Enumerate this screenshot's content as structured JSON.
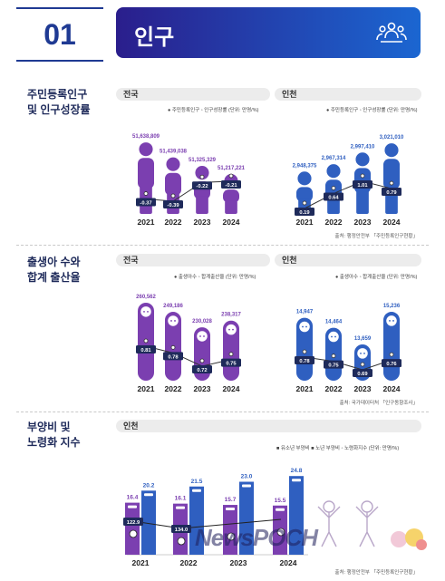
{
  "header": {
    "number": "01",
    "title": "인구"
  },
  "sections": [
    {
      "label_line1": "주민등록인구",
      "label_line2": "및 인구성장률"
    },
    {
      "label_line1": "출생아 수와",
      "label_line2": "합계 출산율"
    },
    {
      "label_line1": "부양비 및",
      "label_line2": "노령화 지수"
    }
  ],
  "panels": {
    "pop_nat": {
      "title": "전국",
      "legend": "● 주민등록인구 ◦ 인구성장률 (단위: 만명/%)"
    },
    "pop_inc": {
      "title": "인천",
      "legend": "● 주민등록인구 ◦ 인구성장률 (단위: 만명/%)",
      "source": "출처: 행정안전부 「주민등록인구현황」"
    },
    "birth_nat": {
      "title": "전국",
      "legend": "● 출생아수 ◦ 합계출산율 (단위: 만명/%)"
    },
    "birth_inc": {
      "title": "인천",
      "legend": "● 출생아수 ◦ 합계출산율 (단위: 만명/%)",
      "source": "출처: 국가데이터처 「인구동향조사」"
    },
    "dep_inc": {
      "title": "인천",
      "legend": "■ 유소년 부양비  ■ 노년 부양비  ◦ 노령화지수 (단위: 만명/%)",
      "source": "출처: 행정안전부 「주민등록인구현황」"
    }
  },
  "colors": {
    "purple": "#7b3fb0",
    "blue": "#2f5fc0",
    "navy": "#1e2a5a",
    "line": "#333333"
  },
  "chart_data": [
    {
      "id": "pop_nat",
      "type": "bar",
      "categories": [
        "2021",
        "2022",
        "2023",
        "2024"
      ],
      "series": [
        {
          "name": "주민등록인구",
          "values": [
            51638809,
            51439038,
            51325329,
            51217221
          ],
          "labels": [
            "51,638,809",
            "51,439,038",
            "51,325,329",
            "51,217,221"
          ]
        },
        {
          "name": "인구성장률",
          "type": "line",
          "values": [
            -0.37,
            -0.39,
            -0.22,
            -0.21
          ],
          "labels": [
            "-0.37",
            "-0.39",
            "-0.22",
            "-0.21"
          ]
        }
      ]
    },
    {
      "id": "pop_inc",
      "type": "bar",
      "categories": [
        "2021",
        "2022",
        "2023",
        "2024"
      ],
      "series": [
        {
          "name": "주민등록인구",
          "values": [
            2948375,
            2967314,
            2997410,
            3021010
          ],
          "labels": [
            "2,948,375",
            "2,967,314",
            "2,997,410",
            "3,021,010"
          ]
        },
        {
          "name": "인구성장률",
          "type": "line",
          "values": [
            0.19,
            0.64,
            1.01,
            0.79
          ],
          "labels": [
            "0.19",
            "0.64",
            "1.01",
            "0.79"
          ]
        }
      ]
    },
    {
      "id": "birth_nat",
      "type": "bar",
      "categories": [
        "2021",
        "2022",
        "2023",
        "2024"
      ],
      "series": [
        {
          "name": "출생아수",
          "values": [
            260562,
            249186,
            230028,
            238317
          ],
          "labels": [
            "260,562",
            "249,186",
            "230,028",
            "238,317"
          ]
        },
        {
          "name": "합계출산율",
          "type": "line",
          "values": [
            0.81,
            0.78,
            0.72,
            0.75
          ],
          "labels": [
            "0.81",
            "0.78",
            "0.72",
            "0.75"
          ]
        }
      ]
    },
    {
      "id": "birth_inc",
      "type": "bar",
      "categories": [
        "2021",
        "2022",
        "2023",
        "2024"
      ],
      "series": [
        {
          "name": "출생아수",
          "values": [
            14947,
            14464,
            13659,
            15236
          ],
          "labels": [
            "14,947",
            "14,464",
            "13,659",
            "15,236"
          ]
        },
        {
          "name": "합계출산율",
          "type": "line",
          "values": [
            0.78,
            0.75,
            0.69,
            0.76
          ],
          "labels": [
            "0.78",
            "0.75",
            "0.69",
            "0.76"
          ]
        }
      ]
    },
    {
      "id": "dep_inc",
      "type": "bar",
      "categories": [
        "2021",
        "2022",
        "2023",
        "2024"
      ],
      "series": [
        {
          "name": "유소년 부양비",
          "values": [
            16.4,
            16.1,
            15.7,
            15.5
          ],
          "labels": [
            "16.4",
            "16.1",
            "15.7",
            "15.5"
          ]
        },
        {
          "name": "노년 부양비",
          "values": [
            20.2,
            21.5,
            23.0,
            24.8
          ],
          "labels": [
            "20.2",
            "21.5",
            "23.0",
            "24.8"
          ]
        },
        {
          "name": "노령화지수",
          "type": "line",
          "values": [
            122.9,
            134.0,
            null,
            null
          ],
          "labels": [
            "122.9",
            "134.0",
            "",
            ""
          ]
        }
      ]
    }
  ],
  "watermark": "NewsPOCH"
}
